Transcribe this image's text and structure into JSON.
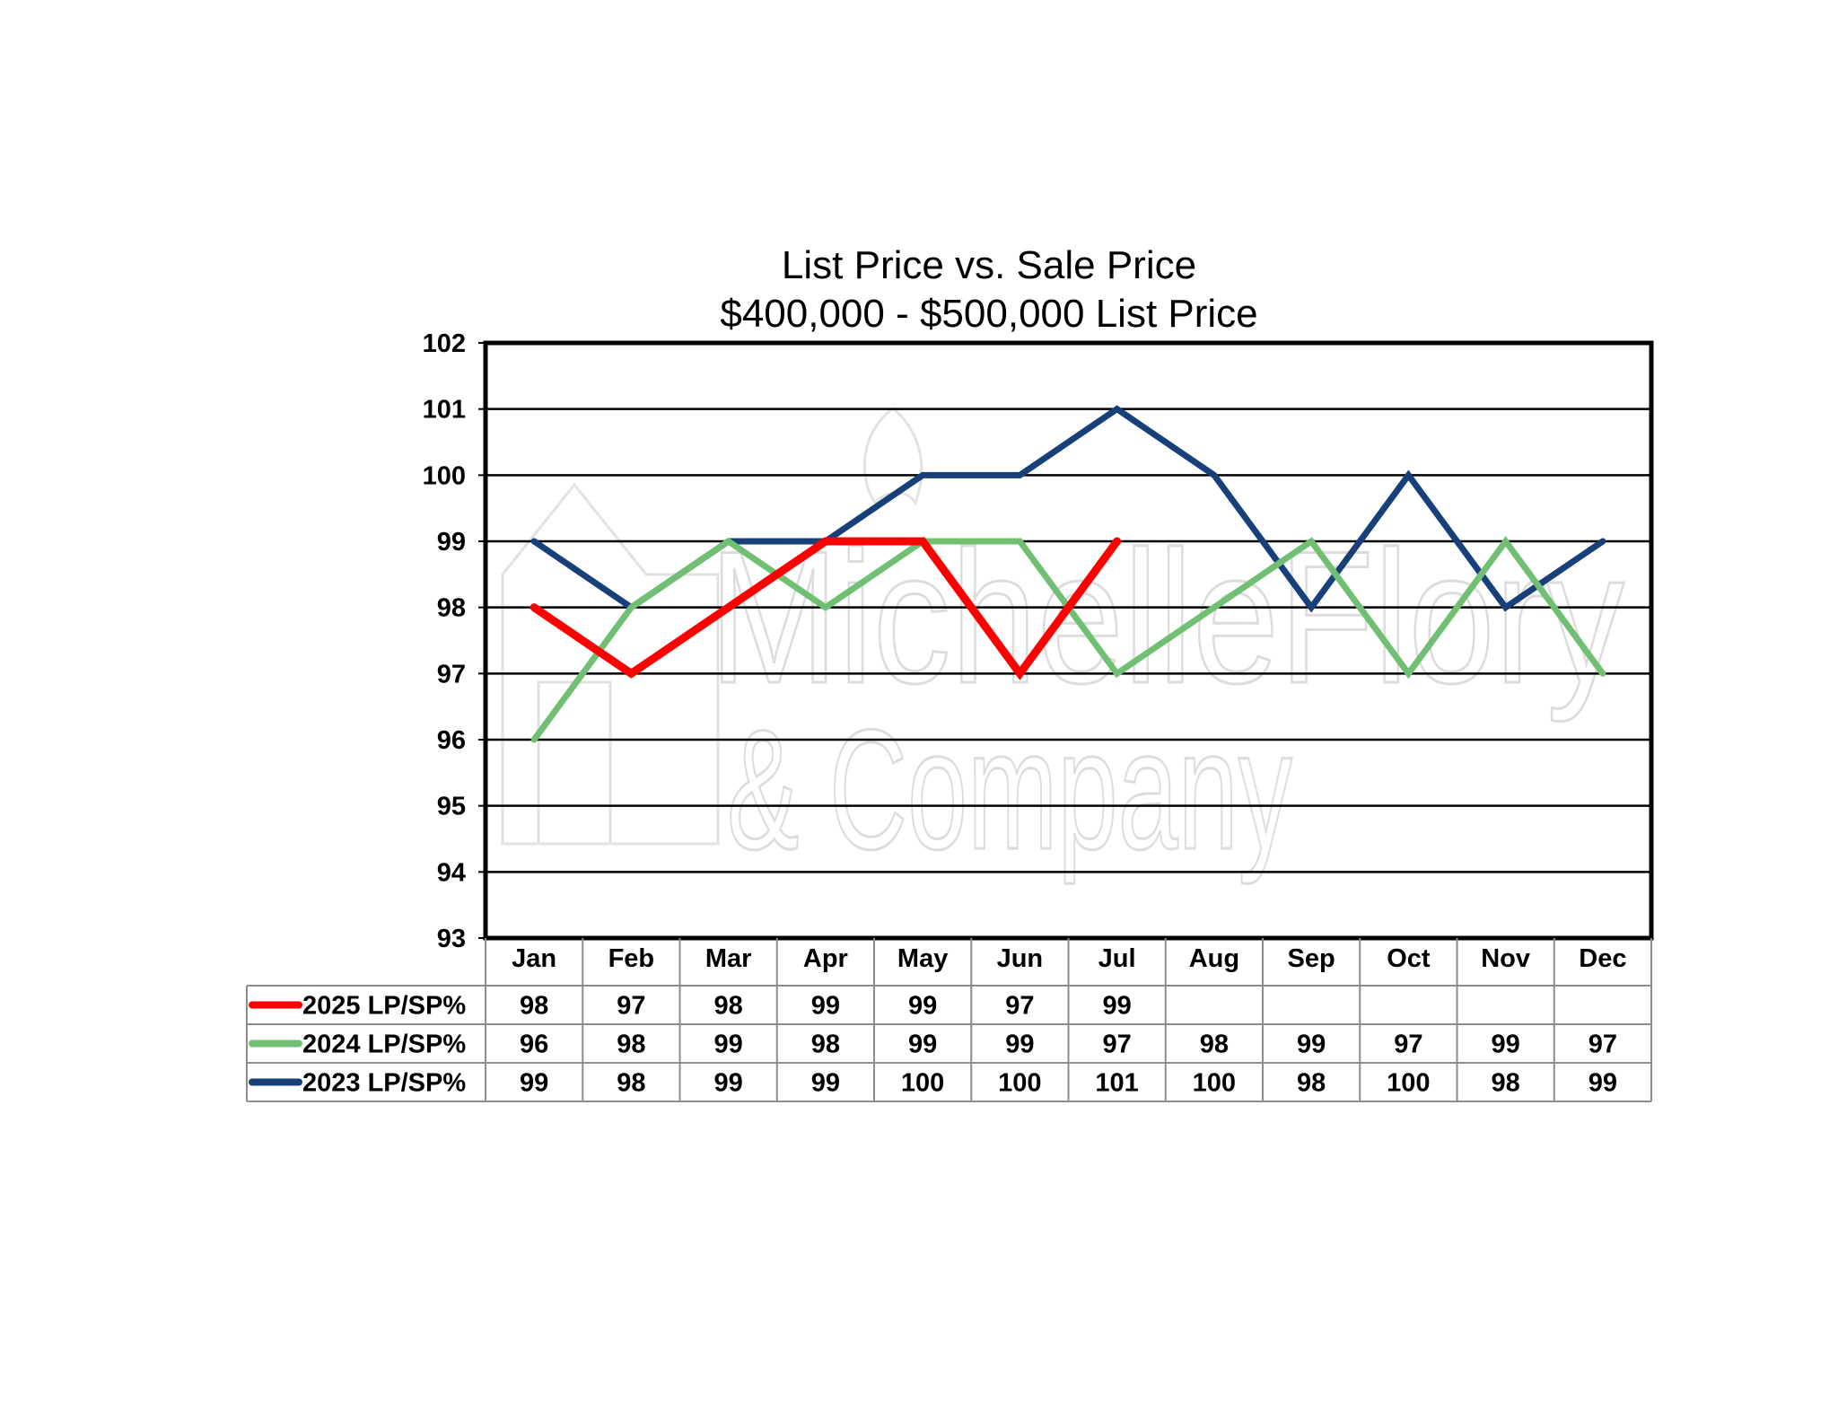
{
  "chart_data": {
    "type": "line",
    "title": "List Price vs. Sale Price",
    "subtitle": "$400,000 - $500,000  List Price",
    "categories": [
      "Jan",
      "Feb",
      "Mar",
      "Apr",
      "May",
      "Jun",
      "Jul",
      "Aug",
      "Sep",
      "Oct",
      "Nov",
      "Dec"
    ],
    "ylim": [
      93,
      102
    ],
    "yticks": [
      "102",
      "101",
      "100",
      "99",
      "98",
      "97",
      "96",
      "95",
      "94",
      "93"
    ],
    "grid": true,
    "legend_placement": "bottom data table",
    "series": [
      {
        "name": "2025 LP/SP%",
        "color": "#ff0000",
        "values": [
          98,
          97,
          98,
          99,
          99,
          97,
          99,
          null,
          null,
          null,
          null,
          null
        ]
      },
      {
        "name": "2024 LP/SP%",
        "color": "#70bf73",
        "values": [
          96,
          98,
          99,
          98,
          99,
          99,
          97,
          98,
          99,
          97,
          99,
          97
        ]
      },
      {
        "name": "2023 LP/SP%",
        "color": "#17407a",
        "values": [
          99,
          98,
          99,
          99,
          100,
          100,
          101,
          100,
          98,
          100,
          98,
          99
        ]
      }
    ]
  },
  "watermark": {
    "line1": "MichelleFlory",
    "line2": "& Company"
  }
}
